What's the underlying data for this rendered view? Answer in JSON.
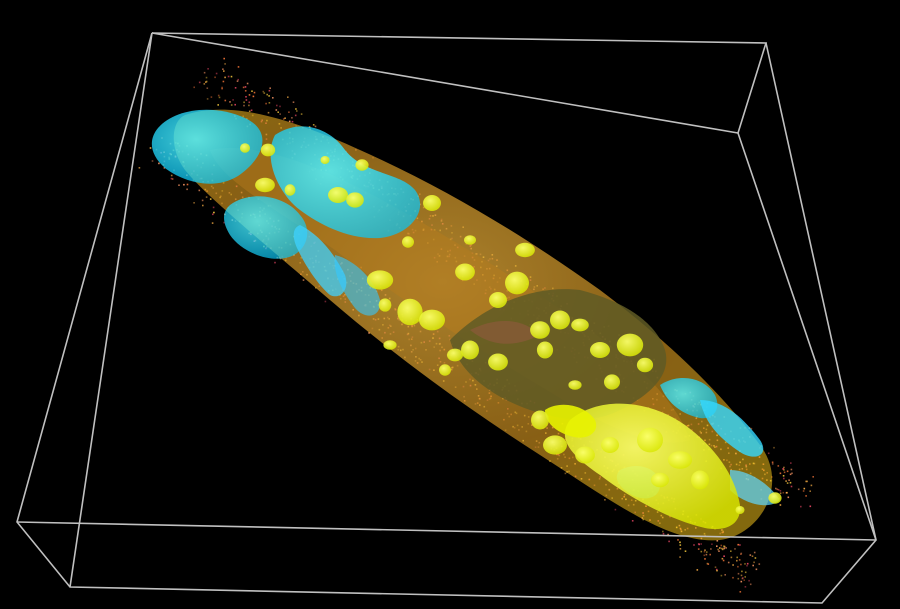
{
  "scene": {
    "background_color": "#000000",
    "bounding_box_color": "#c0c0c0",
    "colors": {
      "outer_shell": "#d4a017",
      "inner_core": "#6b5a2a",
      "cyan_surface": "#00e5ff",
      "yellow_blobs": "#f2ff00",
      "particle_fringe": "#ff8a3d"
    }
  }
}
